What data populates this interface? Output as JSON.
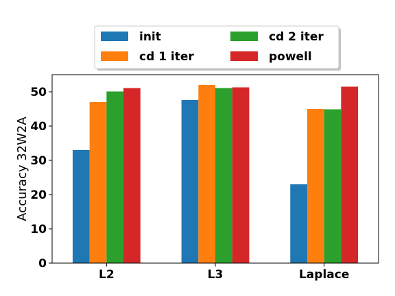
{
  "chart_data": {
    "type": "bar",
    "categories": [
      "L2",
      "L3",
      "Laplace"
    ],
    "series": [
      {
        "name": "init",
        "values": [
          33,
          47.6,
          23
        ],
        "color": "#1f77b4"
      },
      {
        "name": "cd 1 iter",
        "values": [
          47,
          52,
          45
        ],
        "color": "#ff7f0e"
      },
      {
        "name": "cd 2 iter",
        "values": [
          50.1,
          51.1,
          44.9
        ],
        "color": "#2ca02c"
      },
      {
        "name": "powell",
        "values": [
          51.1,
          51.3,
          51.5
        ],
        "color": "#d62728"
      }
    ],
    "title": "",
    "xlabel": "",
    "ylabel": "Accuracy 32W2A",
    "ylim": [
      0,
      55
    ],
    "yticks": [
      0,
      10,
      20,
      30,
      40,
      50
    ],
    "grid": false,
    "legend_position": "top-center"
  }
}
